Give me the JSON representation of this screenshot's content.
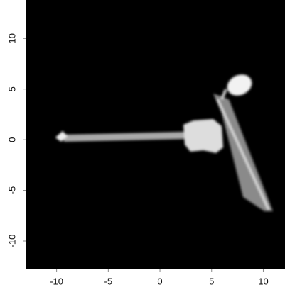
{
  "chart_data": {
    "type": "image",
    "xlim": [
      -13,
      12.1
    ],
    "ylim": [
      -12.8,
      13.8
    ],
    "xticks": [
      -10,
      -5,
      0,
      5,
      10
    ],
    "yticks": [
      -10,
      -5,
      0,
      5,
      10
    ]
  }
}
